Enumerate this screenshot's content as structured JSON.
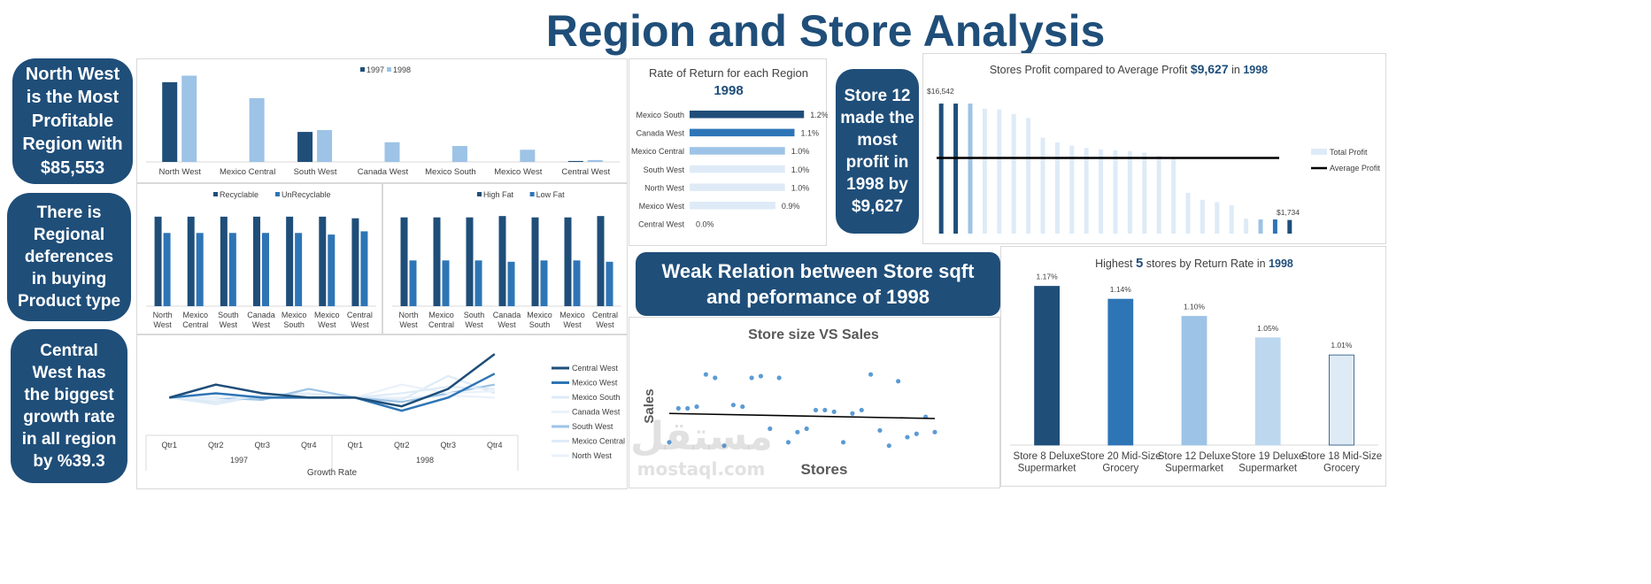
{
  "title": "Region and Store Analysis",
  "colors": {
    "dark": "#1F4E79",
    "mid": "#2E75B6",
    "light": "#9DC3E6",
    "pale": "#DEEBF7",
    "paler": "#EAF1FA"
  },
  "callouts": {
    "c1": "North West is the Most Profitable Region with $85,553",
    "c2": "There is Regional deferences in buying Product type",
    "c3": "Central West has the biggest growth rate in all region by %39.3",
    "c4": "Store 12 made the most profit in 1998 by $9,627",
    "c5": "Weak Relation between Store sqft and peformance of 1998"
  },
  "watermark": {
    "arabic": "مستقل",
    "latin": "mostaql.com"
  },
  "chart_data": [
    {
      "id": "region_profit",
      "type": "bar",
      "categories": [
        "North West",
        "Mexico Central",
        "South West",
        "Canada West",
        "Mexico South",
        "Mexico West",
        "Central West"
      ],
      "series": [
        {
          "name": "1997",
          "values": [
            85,
            0,
            32,
            0,
            0,
            0,
            1
          ]
        },
        {
          "name": "1998",
          "values": [
            92,
            68,
            34,
            21,
            17,
            13,
            2
          ]
        }
      ],
      "ylim": [
        0,
        100
      ],
      "legend": "top-center"
    },
    {
      "id": "recyclable",
      "type": "bar",
      "categories": [
        "North West",
        "Mexico Central",
        "South West",
        "Canada West",
        "Mexico South",
        "Mexico West",
        "Central West"
      ],
      "series": [
        {
          "name": "Recyclable",
          "values": [
            55,
            55,
            55,
            55,
            55,
            55,
            54
          ]
        },
        {
          "name": "UnRecyclable",
          "values": [
            45,
            45,
            45,
            45,
            45,
            44,
            46
          ]
        }
      ],
      "ylim": [
        0,
        62
      ],
      "legend": "top-center"
    },
    {
      "id": "fat",
      "type": "bar",
      "categories": [
        "North West",
        "Mexico Central",
        "South West",
        "Canada West",
        "Mexico South",
        "Mexico West",
        "Central West"
      ],
      "series": [
        {
          "name": "High Fat",
          "values": [
            66,
            66,
            66,
            67,
            66,
            66,
            67
          ]
        },
        {
          "name": "Low Fat",
          "values": [
            34,
            34,
            34,
            33,
            34,
            34,
            33
          ]
        }
      ],
      "ylim": [
        0,
        75
      ],
      "legend": "top-center"
    },
    {
      "id": "growth",
      "type": "line",
      "xlabel": "Growth Rate",
      "years": [
        "1997",
        "1998"
      ],
      "categories": [
        "Qtr1",
        "Qtr2",
        "Qtr3",
        "Qtr4",
        "Qtr1",
        "Qtr2",
        "Qtr3",
        "Qtr4"
      ],
      "series": [
        {
          "name": "Central West",
          "values": [
            100,
            112,
            104,
            100,
            100,
            92,
            108,
            140
          ]
        },
        {
          "name": "Mexico West",
          "values": [
            100,
            104,
            100,
            100,
            100,
            88,
            100,
            122
          ]
        },
        {
          "name": "Mexico South",
          "values": [
            100,
            96,
            102,
            100,
            100,
            104,
            110,
            108
          ]
        },
        {
          "name": "Canada West",
          "values": [
            100,
            100,
            102,
            100,
            100,
            112,
            104,
            106
          ]
        },
        {
          "name": "South West",
          "values": [
            100,
            100,
            98,
            108,
            100,
            96,
            104,
            112
          ]
        },
        {
          "name": "Mexico Central",
          "values": [
            100,
            94,
            102,
            104,
            100,
            98,
            120,
            104
          ]
        },
        {
          "name": "North West",
          "values": [
            100,
            98,
            100,
            102,
            100,
            100,
            102,
            100
          ]
        }
      ],
      "legend": "right"
    },
    {
      "id": "rate_of_return",
      "type": "bar",
      "orientation": "horizontal",
      "title": "Rate of Return for each Region",
      "subtitle": "1998",
      "categories": [
        "Mexico South",
        "Canada West",
        "Mexico Central",
        "South West",
        "North West",
        "Mexico West",
        "Central West"
      ],
      "values": [
        1.2,
        1.1,
        1.0,
        1.0,
        1.0,
        0.9,
        0.0
      ],
      "labels": [
        "1.2%",
        "1.1%",
        "1.0%",
        "1.0%",
        "1.0%",
        "0.9%",
        "0.0%"
      ],
      "xlim": [
        0,
        1.3
      ]
    },
    {
      "id": "store_profit",
      "type": "bar",
      "title_pre": "Stores Profit compared to Average Profit ",
      "title_value": "$9,627",
      "title_mid": " in ",
      "title_year": "1998",
      "values": [
        16542,
        16542,
        16542,
        15900,
        15800,
        15200,
        14700,
        12200,
        11600,
        11200,
        10900,
        10700,
        10600,
        10500,
        10300,
        9900,
        9700,
        5200,
        4300,
        4000,
        3600,
        1900,
        1800,
        1800,
        1734
      ],
      "average": 9627,
      "max_label": "$16,542",
      "min_label": "$1,734",
      "ylim": [
        0,
        17000
      ],
      "legend": [
        "Total Profit",
        "Average Profit"
      ],
      "legend_position": "right"
    },
    {
      "id": "top5_return",
      "type": "bar",
      "title_pre": "Highest ",
      "title_num": "5",
      "title_mid": " stores by Return Rate in ",
      "title_year": "1998",
      "categories": [
        "Store 8 Deluxe Supermarket",
        "Store 20 Mid-Size Grocery",
        "Store 12 Deluxe Supermarket",
        "Store 19 Deluxe Supermarket",
        "Store 18 Mid-Size Grocery"
      ],
      "values": [
        1.17,
        1.14,
        1.1,
        1.05,
        1.01
      ],
      "labels": [
        "1.17%",
        "1.14%",
        "1.10%",
        "1.05%",
        "1.01%"
      ],
      "ylim": [
        0.8,
        1.2
      ]
    },
    {
      "id": "size_vs_sales",
      "type": "scatter",
      "title": "Store size VS Sales",
      "xlabel": "Stores",
      "ylabel": "Sales",
      "x": [
        1,
        2,
        3,
        4,
        5,
        6,
        7,
        8,
        9,
        10,
        11,
        12,
        13,
        14,
        15,
        16,
        17,
        18,
        19,
        20,
        21,
        22,
        23,
        24,
        25,
        26,
        27,
        28,
        29,
        30
      ],
      "y": [
        30,
        50,
        50,
        51,
        70,
        68,
        28,
        52,
        51,
        68,
        69,
        38,
        68,
        30,
        36,
        38,
        49,
        49,
        48,
        30,
        47,
        49,
        70,
        37,
        28,
        66,
        33,
        35,
        45,
        36
      ],
      "trend": [
        47,
        44
      ],
      "ylim": [
        20,
        80
      ]
    }
  ]
}
